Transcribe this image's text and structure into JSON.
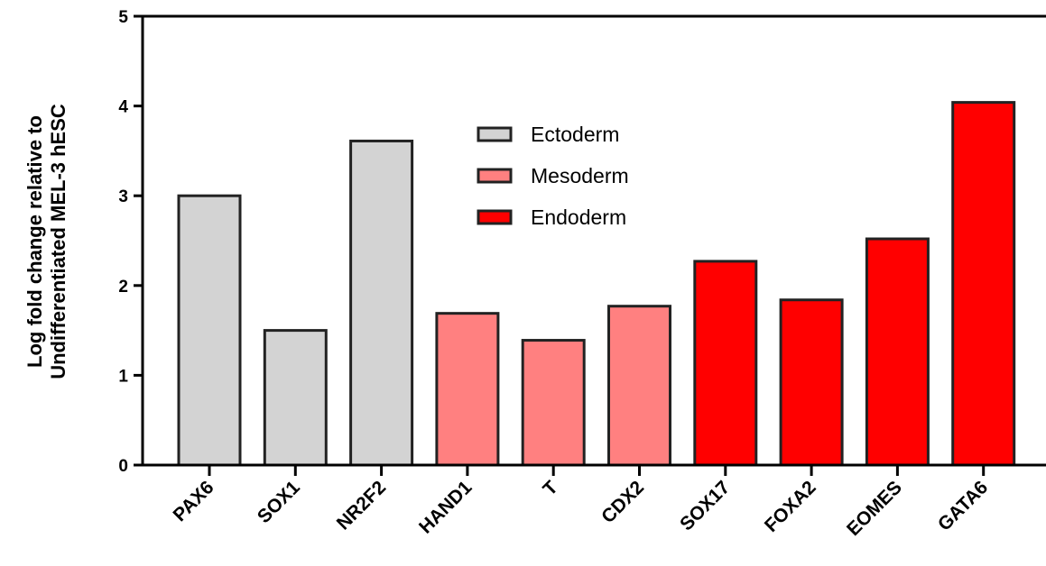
{
  "chart_data": {
    "type": "bar",
    "categories": [
      "PAX6",
      "SOX1",
      "NR2F2",
      "HAND1",
      "T",
      "CDX2",
      "SOX17",
      "FOXA2",
      "EOMES",
      "GATA6"
    ],
    "values": [
      3.0,
      1.5,
      3.61,
      1.69,
      1.39,
      1.77,
      2.27,
      1.84,
      2.52,
      4.04
    ],
    "groups": [
      "Ectoderm",
      "Ectoderm",
      "Ectoderm",
      "Mesoderm",
      "Mesoderm",
      "Mesoderm",
      "Endoderm",
      "Endoderm",
      "Endoderm",
      "Endoderm"
    ],
    "ylabel_lines": [
      "Log fold change relative to",
      "Undifferentiated MEL-3 hESC"
    ],
    "ylim": [
      0,
      5
    ],
    "yticks": [
      "0",
      "1",
      "2",
      "3",
      "4",
      "5"
    ],
    "legend": [
      {
        "label": "Ectoderm",
        "color": "#d3d3d3"
      },
      {
        "label": "Mesoderm",
        "color": "#ff8080"
      },
      {
        "label": "Endoderm",
        "color": "#ff0000"
      }
    ],
    "legend_position": "upper-center",
    "grid": false,
    "colors": {
      "Ectoderm": "#d3d3d3",
      "Mesoderm": "#ff8080",
      "Endoderm": "#ff0000",
      "outline": "#222222"
    }
  }
}
